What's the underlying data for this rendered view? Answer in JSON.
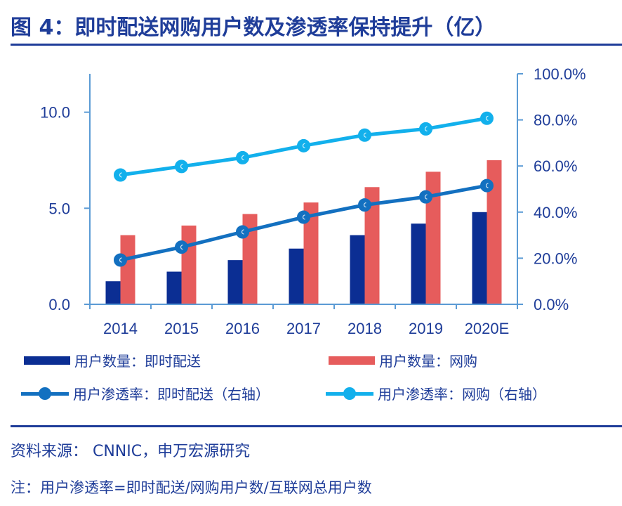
{
  "title": "图 4：即时配送网购用户数及渗透率保持提升（亿）",
  "colors": {
    "bar_instant": "#0b2e93",
    "bar_online": "#e65c5c",
    "line_instant": "#1370c0",
    "line_online": "#12b0ec",
    "axis": "#5b9bd5",
    "text": "#1f3d99"
  },
  "chart_data": {
    "type": "bar",
    "title": "图 4：即时配送网购用户数及渗透率保持提升（亿）",
    "categories": [
      "2014",
      "2015",
      "2016",
      "2017",
      "2018",
      "2019",
      "2020E"
    ],
    "series": [
      {
        "name": "用户数量：即时配送",
        "kind": "bar",
        "axis": "left",
        "values": [
          1.2,
          1.7,
          2.3,
          2.9,
          3.6,
          4.2,
          4.8
        ]
      },
      {
        "name": "用户数量：网购",
        "kind": "bar",
        "axis": "left",
        "values": [
          3.6,
          4.1,
          4.7,
          5.3,
          6.1,
          6.9,
          7.5
        ]
      },
      {
        "name": "用户渗透率：即时配送（右轴）",
        "kind": "line",
        "axis": "right",
        "values": [
          19.2,
          24.8,
          31.4,
          37.8,
          43.1,
          46.6,
          51.5
        ]
      },
      {
        "name": "用户渗透率：网购（右轴）",
        "kind": "line",
        "axis": "right",
        "values": [
          56.1,
          59.8,
          63.6,
          68.8,
          73.4,
          76.1,
          80.7
        ]
      }
    ],
    "y_left": {
      "label": "",
      "ylim": [
        0,
        12
      ],
      "ticks": [
        0,
        5,
        10
      ],
      "tick_labels": [
        "0.0",
        "5.0",
        "10.0"
      ]
    },
    "y_right": {
      "label": "",
      "ylim": [
        0,
        100
      ],
      "ticks": [
        0,
        20,
        40,
        60,
        80,
        100
      ],
      "tick_labels": [
        "0.0%",
        "20.0%",
        "40.0%",
        "60.0%",
        "80.0%",
        "100.0%"
      ]
    },
    "xlabel": "",
    "grid": false,
    "legend_position": "bottom"
  },
  "legend": [
    {
      "label": "用户数量：即时配送"
    },
    {
      "label": "用户数量：网购"
    },
    {
      "label": "用户渗透率：即时配送（右轴）"
    },
    {
      "label": "用户渗透率：网购（右轴）"
    }
  ],
  "footer": {
    "source": "资料来源：   CNNIC，申万宏源研究",
    "note": "注：用户渗透率=即时配送/网购用户数/互联网总用户数"
  }
}
